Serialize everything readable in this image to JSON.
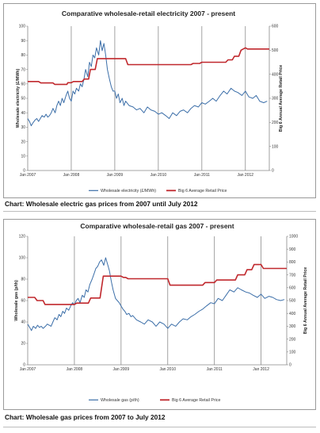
{
  "charts": [
    {
      "chart_data": {
        "type": "line",
        "title": "Comparative wholesale-retail electricity 2007 - present",
        "ylabel": "Wholesale electricity (£/MWh)",
        "y2label": "Big 6 Annual Average Retail Price",
        "ylim": [
          0,
          100
        ],
        "y2lim": [
          0,
          600
        ],
        "yticks": [
          0,
          10,
          20,
          30,
          40,
          50,
          60,
          70,
          80,
          90,
          100
        ],
        "y2ticks": [
          0,
          100,
          200,
          300,
          400,
          500,
          600
        ],
        "xlim": [
          2007.0,
          2012.55
        ],
        "xticks": [
          {
            "value": 2007,
            "label": "Jan 2007"
          },
          {
            "value": 2008,
            "label": "Jan 2008"
          },
          {
            "value": 2009,
            "label": "Jan 2009"
          },
          {
            "value": 2010,
            "label": "Jan 2010"
          },
          {
            "value": 2011,
            "label": "Jan 2011"
          },
          {
            "value": 2012,
            "label": "Jan 2012"
          }
        ],
        "gridlines": "vertical at January of each year",
        "legend_position": "bottom",
        "series": [
          {
            "name": "Wholesale electricity (£/MWh)",
            "axis": "left",
            "color": "#3b6ea8",
            "x": [
              2007.0,
              2007.04,
              2007.08,
              2007.12,
              2007.17,
              2007.21,
              2007.25,
              2007.29,
              2007.33,
              2007.38,
              2007.42,
              2007.46,
              2007.5,
              2007.54,
              2007.58,
              2007.63,
              2007.67,
              2007.71,
              2007.75,
              2007.79,
              2007.83,
              2007.88,
              2007.92,
              2007.96,
              2008.0,
              2008.04,
              2008.08,
              2008.12,
              2008.17,
              2008.21,
              2008.25,
              2008.29,
              2008.33,
              2008.38,
              2008.42,
              2008.46,
              2008.5,
              2008.54,
              2008.58,
              2008.63,
              2008.67,
              2008.71,
              2008.75,
              2008.79,
              2008.83,
              2008.88,
              2008.92,
              2008.96,
              2009.0,
              2009.04,
              2009.08,
              2009.12,
              2009.17,
              2009.21,
              2009.25,
              2009.33,
              2009.42,
              2009.5,
              2009.58,
              2009.67,
              2009.75,
              2009.83,
              2009.92,
              2010.0,
              2010.08,
              2010.17,
              2010.25,
              2010.33,
              2010.42,
              2010.5,
              2010.58,
              2010.67,
              2010.75,
              2010.83,
              2010.92,
              2011.0,
              2011.08,
              2011.17,
              2011.25,
              2011.33,
              2011.42,
              2011.5,
              2011.58,
              2011.67,
              2011.75,
              2011.83,
              2011.92,
              2012.0,
              2012.08,
              2012.17,
              2012.25,
              2012.33,
              2012.42,
              2012.5
            ],
            "y": [
              36,
              34,
              31,
              33,
              35,
              36,
              34,
              36,
              38,
              37,
              39,
              37,
              38,
              40,
              43,
              40,
              45,
              48,
              45,
              50,
              47,
              52,
              55,
              50,
              48,
              55,
              53,
              57,
              55,
              60,
              58,
              63,
              70,
              65,
              75,
              72,
              80,
              78,
              85,
              80,
              90,
              83,
              88,
              80,
              70,
              63,
              58,
              55,
              55,
              50,
              53,
              47,
              50,
              45,
              48,
              45,
              44,
              42,
              43,
              40,
              44,
              42,
              41,
              39,
              40,
              38,
              36,
              40,
              38,
              41,
              42,
              40,
              43,
              45,
              44,
              47,
              46,
              48,
              50,
              48,
              52,
              55,
              53,
              57,
              55,
              54,
              52,
              55,
              51,
              50,
              52,
              48,
              47,
              48
            ]
          },
          {
            "name": "Big 6 Average Retail Price",
            "axis": "right",
            "color": "#c0282d",
            "x": [
              2007.0,
              2007.25,
              2007.3,
              2007.58,
              2007.62,
              2007.9,
              2007.92,
              2008.0,
              2008.05,
              2008.25,
              2008.3,
              2008.4,
              2008.44,
              2008.55,
              2008.6,
              2008.95,
              2009.0,
              2009.25,
              2009.3,
              2010.75,
              2010.8,
              2010.95,
              2011.0,
              2011.55,
              2011.6,
              2011.7,
              2011.75,
              2011.85,
              2011.9,
              2012.0,
              2012.05,
              2012.55
            ],
            "y": [
              370,
              370,
              364,
              364,
              358,
              358,
              365,
              365,
              370,
              370,
              380,
              380,
              420,
              420,
              465,
              465,
              465,
              465,
              440,
              440,
              445,
              445,
              450,
              450,
              460,
              460,
              475,
              475,
              500,
              510,
              505,
              505
            ]
          }
        ]
      },
      "caption": "Chart: Wholesale electric gas prices from 2007 until July 2012"
    },
    {
      "chart_data": {
        "type": "line",
        "title": "Comparative wholesale-retail gas 2007 - present",
        "ylabel": "Wholesale gas (p/th)",
        "y2label": "Big 6 Annual Average Retail Price",
        "ylim": [
          0,
          120
        ],
        "y2lim": [
          0,
          1000
        ],
        "yticks": [
          0,
          20,
          40,
          60,
          80,
          100,
          120
        ],
        "y2ticks": [
          0,
          100,
          200,
          300,
          400,
          500,
          600,
          700,
          800,
          900,
          1000
        ],
        "xlim": [
          2007.0,
          2012.55
        ],
        "xticks": [
          {
            "value": 2007,
            "label": "Jan 2007"
          },
          {
            "value": 2008,
            "label": "Jan 2008"
          },
          {
            "value": 2009,
            "label": "Jan 2009"
          },
          {
            "value": 2010,
            "label": "Jan 2010"
          },
          {
            "value": 2011,
            "label": "Jan 2011"
          },
          {
            "value": 2012,
            "label": "Jan 2012"
          }
        ],
        "gridlines": "vertical at January of each year",
        "legend_position": "bottom",
        "series": [
          {
            "name": "Wholesale gas (p/th)",
            "axis": "left",
            "color": "#3b6ea8",
            "x": [
              2007.0,
              2007.04,
              2007.08,
              2007.12,
              2007.17,
              2007.21,
              2007.25,
              2007.29,
              2007.33,
              2007.38,
              2007.42,
              2007.46,
              2007.5,
              2007.54,
              2007.58,
              2007.63,
              2007.67,
              2007.71,
              2007.75,
              2007.79,
              2007.83,
              2007.88,
              2007.92,
              2007.96,
              2008.0,
              2008.04,
              2008.08,
              2008.12,
              2008.17,
              2008.21,
              2008.25,
              2008.29,
              2008.33,
              2008.38,
              2008.42,
              2008.46,
              2008.5,
              2008.54,
              2008.58,
              2008.63,
              2008.67,
              2008.71,
              2008.75,
              2008.79,
              2008.83,
              2008.88,
              2008.92,
              2008.96,
              2009.0,
              2009.04,
              2009.08,
              2009.12,
              2009.17,
              2009.21,
              2009.25,
              2009.33,
              2009.42,
              2009.5,
              2009.58,
              2009.67,
              2009.75,
              2009.83,
              2009.92,
              2010.0,
              2010.08,
              2010.17,
              2010.25,
              2010.33,
              2010.42,
              2010.5,
              2010.58,
              2010.67,
              2010.75,
              2010.83,
              2010.92,
              2011.0,
              2011.08,
              2011.17,
              2011.25,
              2011.33,
              2011.42,
              2011.5,
              2011.58,
              2011.67,
              2011.75,
              2011.83,
              2011.92,
              2012.0,
              2012.08,
              2012.17,
              2012.25,
              2012.33,
              2012.42,
              2012.5
            ],
            "y": [
              38,
              35,
              32,
              36,
              34,
              37,
              35,
              36,
              34,
              36,
              38,
              37,
              36,
              40,
              44,
              42,
              47,
              45,
              50,
              48,
              53,
              51,
              55,
              58,
              56,
              60,
              62,
              58,
              65,
              63,
              70,
              68,
              75,
              80,
              85,
              90,
              92,
              96,
              98,
              93,
              100,
              94,
              88,
              78,
              70,
              62,
              60,
              58,
              55,
              52,
              50,
              47,
              48,
              45,
              46,
              42,
              40,
              38,
              42,
              40,
              36,
              40,
              38,
              34,
              38,
              36,
              40,
              43,
              42,
              45,
              47,
              50,
              52,
              55,
              58,
              57,
              62,
              60,
              65,
              70,
              68,
              72,
              70,
              68,
              67,
              65,
              63,
              66,
              62,
              64,
              63,
              61,
              60,
              61
            ]
          },
          {
            "name": "Big 6 Average Retail Price",
            "axis": "right",
            "color": "#c0282d",
            "x": [
              2007.0,
              2007.15,
              2007.2,
              2007.33,
              2007.37,
              2008.0,
              2008.05,
              2008.3,
              2008.35,
              2008.55,
              2008.62,
              2009.0,
              2009.05,
              2009.1,
              2009.15,
              2010.0,
              2010.05,
              2010.75,
              2010.8,
              2011.0,
              2011.05,
              2011.45,
              2011.5,
              2011.65,
              2011.7,
              2011.8,
              2011.85,
              2012.0,
              2012.05,
              2012.55
            ],
            "y": [
              525,
              525,
              500,
              500,
              470,
              470,
              480,
              480,
              520,
              520,
              690,
              690,
              680,
              680,
              670,
              670,
              620,
              620,
              640,
              640,
              660,
              660,
              700,
              700,
              740,
              740,
              780,
              780,
              750,
              750
            ]
          }
        ]
      },
      "caption": "Chart: Wholesale gas prices from 2007 to July 2012"
    }
  ]
}
